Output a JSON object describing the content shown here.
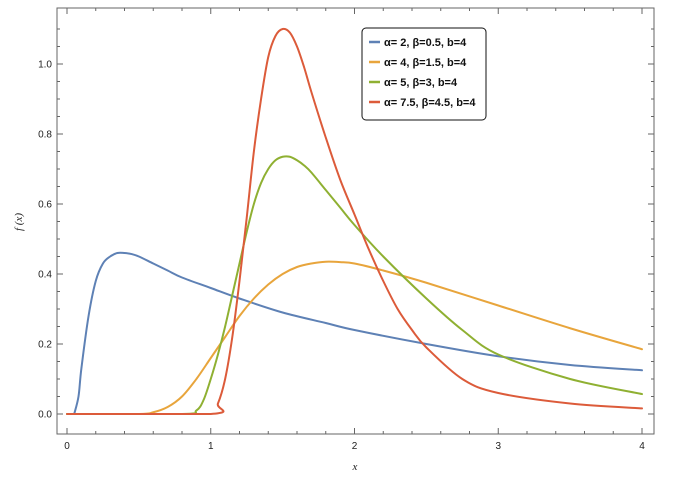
{
  "chart_data": {
    "type": "line",
    "title": "",
    "xlabel": "x",
    "ylabel": "f (x)",
    "xlim": [
      0,
      4
    ],
    "ylim": [
      0,
      1.1
    ],
    "x_ticks": [
      "0",
      "1",
      "2",
      "3",
      "4"
    ],
    "y_ticks": [
      "0.0",
      "0.2",
      "0.4",
      "0.6",
      "0.8",
      "1.0"
    ],
    "grid": false,
    "legend_position": "top-right",
    "series": [
      {
        "name": "α= 2, β=0.5, b=4",
        "color": "#5e81b5",
        "x": [
          0.05,
          0.08,
          0.1,
          0.15,
          0.2,
          0.25,
          0.3,
          0.35,
          0.4,
          0.45,
          0.5,
          0.6,
          0.7,
          0.8,
          1.0,
          1.2,
          1.5,
          1.8,
          2.0,
          2.5,
          3.0,
          3.5,
          4.0
        ],
        "y": [
          0.0,
          0.05,
          0.13,
          0.28,
          0.38,
          0.43,
          0.45,
          0.46,
          0.46,
          0.457,
          0.45,
          0.43,
          0.41,
          0.39,
          0.36,
          0.33,
          0.29,
          0.26,
          0.24,
          0.2,
          0.165,
          0.14,
          0.125
        ]
      },
      {
        "name": "α= 4, β=1.5, b=4",
        "color": "#e8a53c",
        "x": [
          0.0,
          0.5,
          0.6,
          0.7,
          0.8,
          0.9,
          1.0,
          1.1,
          1.2,
          1.3,
          1.4,
          1.5,
          1.6,
          1.7,
          1.8,
          1.9,
          2.0,
          2.2,
          2.5,
          3.0,
          3.5,
          4.0
        ],
        "y": [
          0.0,
          0.0,
          0.005,
          0.02,
          0.05,
          0.1,
          0.16,
          0.22,
          0.28,
          0.33,
          0.37,
          0.4,
          0.42,
          0.43,
          0.435,
          0.434,
          0.43,
          0.41,
          0.375,
          0.31,
          0.245,
          0.185
        ]
      },
      {
        "name": "α= 5, β=3, b=4",
        "color": "#8fb032",
        "x": [
          0.0,
          0.8,
          0.9,
          0.95,
          1.0,
          1.05,
          1.1,
          1.15,
          1.2,
          1.25,
          1.3,
          1.35,
          1.4,
          1.45,
          1.5,
          1.55,
          1.6,
          1.65,
          1.7,
          1.8,
          1.9,
          2.0,
          2.2,
          2.5,
          2.75,
          3.0,
          3.5,
          4.0
        ],
        "y": [
          0.0,
          0.0,
          0.01,
          0.04,
          0.1,
          0.17,
          0.25,
          0.34,
          0.43,
          0.52,
          0.6,
          0.66,
          0.7,
          0.725,
          0.735,
          0.735,
          0.725,
          0.71,
          0.69,
          0.64,
          0.59,
          0.54,
          0.45,
          0.33,
          0.24,
          0.17,
          0.1,
          0.057
        ]
      },
      {
        "name": "α= 7.5, β=4.5, b=4",
        "color": "#dc5b3a",
        "x": [
          0.0,
          1.0,
          1.05,
          1.1,
          1.15,
          1.2,
          1.25,
          1.3,
          1.35,
          1.4,
          1.45,
          1.5,
          1.55,
          1.6,
          1.65,
          1.7,
          1.8,
          1.9,
          2.0,
          2.1,
          2.2,
          2.3,
          2.4,
          2.5,
          2.75,
          3.0,
          3.5,
          4.0
        ],
        "y": [
          0.0,
          0.0,
          0.03,
          0.1,
          0.22,
          0.38,
          0.56,
          0.75,
          0.9,
          1.02,
          1.08,
          1.1,
          1.09,
          1.05,
          0.99,
          0.92,
          0.79,
          0.67,
          0.57,
          0.47,
          0.38,
          0.3,
          0.24,
          0.19,
          0.1,
          0.06,
          0.03,
          0.016
        ]
      }
    ]
  }
}
